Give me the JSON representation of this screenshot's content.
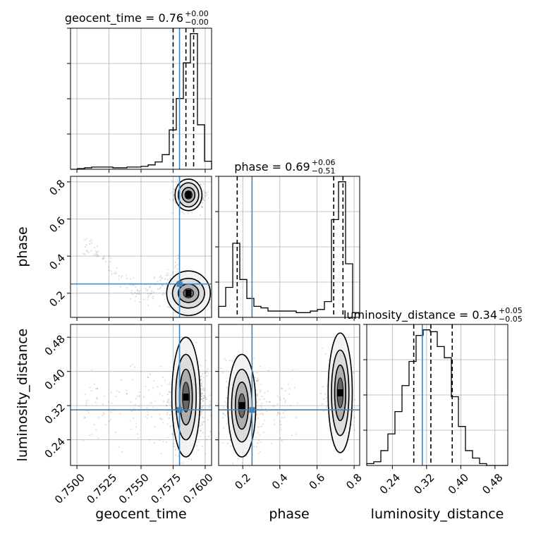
{
  "chart_data": {
    "type": "corner",
    "truth_color": "#4682b4",
    "hist_color": "#000000",
    "grid": true,
    "parameters": [
      {
        "name": "geocent_time",
        "median": "0.76",
        "plus": "+0.00",
        "minus": "−0.00",
        "truth": 0.758,
        "quantiles": [
          0.7575,
          0.7585,
          0.7591
        ],
        "range": [
          0.7495,
          0.7605
        ]
      },
      {
        "name": "phase",
        "median": "0.69",
        "plus": "+0.06",
        "minus": "−0.51",
        "truth": 0.25,
        "quantiles": [
          0.17,
          0.69,
          0.74
        ],
        "range": [
          0.07,
          0.83
        ]
      },
      {
        "name": "luminosity_distance",
        "median": "0.34",
        "plus": "+0.05",
        "minus": "−0.05",
        "truth": 0.31,
        "quantiles": [
          0.29,
          0.33,
          0.38
        ],
        "range": [
          0.18,
          0.51
        ]
      }
    ],
    "titles": [
      {
        "label": "geocent_time = 0.76",
        "sup": "+0.00",
        "sub": "−0.00"
      },
      {
        "label": "phase = 0.69",
        "sup": "+0.06",
        "sub": "−0.51"
      },
      {
        "label": "luminosity_distance = 0.34",
        "sup": "+0.05",
        "sub": "−0.05"
      }
    ],
    "axis_labels": {
      "x": [
        "geocent_time",
        "phase",
        "luminosity_distance"
      ],
      "y": [
        "phase",
        "luminosity_distance"
      ]
    },
    "ticks": {
      "geocent_time": [
        "0.7500",
        "0.7525",
        "0.7550",
        "0.7575",
        "0.7600"
      ],
      "phase": [
        "0.2",
        "0.4",
        "0.6",
        "0.8"
      ],
      "luminosity_distance": [
        "0.24",
        "0.32",
        "0.40",
        "0.48"
      ]
    },
    "histograms": {
      "geocent_time": {
        "edges": [
          0.7495,
          0.75005,
          0.7506,
          0.75115,
          0.7517,
          0.75225,
          0.7528,
          0.75335,
          0.7539,
          0.75445,
          0.755,
          0.75555,
          0.7561,
          0.75665,
          0.7572,
          0.75775,
          0.7583,
          0.75885,
          0.7594,
          0.75995,
          0.7605
        ],
        "counts": [
          0,
          1,
          2,
          3,
          3,
          3,
          2,
          2,
          3,
          3,
          4,
          6,
          10,
          20,
          54,
          97,
          146,
          186,
          61,
          11
        ]
      },
      "phase": {
        "edges": [
          0.07,
          0.108,
          0.146,
          0.184,
          0.222,
          0.26,
          0.298,
          0.336,
          0.374,
          0.412,
          0.45,
          0.488,
          0.526,
          0.564,
          0.602,
          0.64,
          0.678,
          0.716,
          0.754,
          0.792,
          0.83
        ],
        "counts": [
          7,
          19,
          47,
          24,
          12,
          7,
          6,
          4,
          4,
          4,
          4,
          3,
          3,
          4,
          5,
          10,
          62,
          86,
          34,
          3
        ]
      },
      "luminosity_distance": {
        "edges": [
          0.18,
          0.1965,
          0.213,
          0.2295,
          0.246,
          0.2625,
          0.279,
          0.2955,
          0.312,
          0.3285,
          0.345,
          0.3615,
          0.378,
          0.3945,
          0.411,
          0.4275,
          0.444,
          0.4605,
          0.477,
          0.4935,
          0.51
        ],
        "counts": [
          1,
          2,
          8,
          17,
          29,
          43,
          56,
          70,
          73,
          72,
          64,
          58,
          37,
          21,
          8,
          4,
          1,
          0,
          0,
          0
        ]
      }
    }
  }
}
